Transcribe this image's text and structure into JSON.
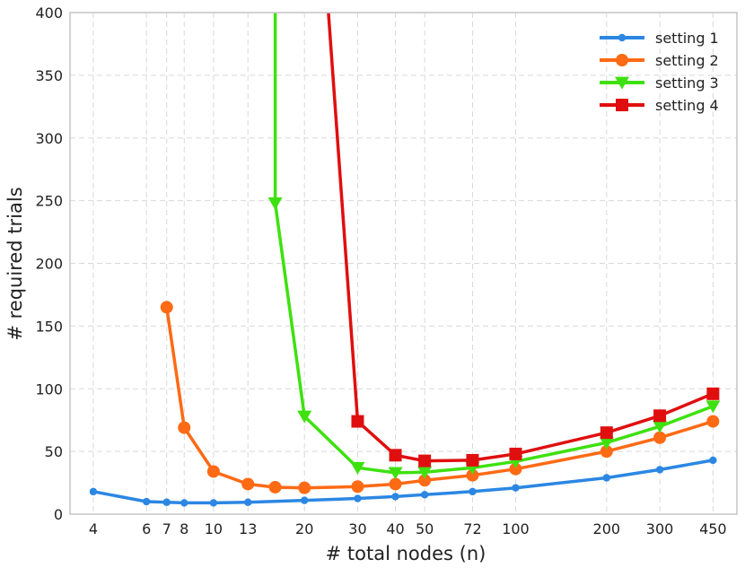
{
  "chart_data": {
    "type": "line",
    "xlabel": "# total nodes (n)",
    "ylabel": "# required trials",
    "x_scale": "log",
    "xlim": [
      3.35,
      540
    ],
    "ylim": [
      0,
      400
    ],
    "x_ticks": [
      4,
      6,
      7,
      8,
      10,
      13,
      20,
      30,
      40,
      50,
      72,
      100,
      200,
      300,
      450
    ],
    "x_tick_labels": [
      "4",
      "6",
      "7",
      "8",
      "10",
      "13",
      "20",
      "30",
      "40",
      "50",
      "72",
      "100",
      "200",
      "300",
      "450"
    ],
    "y_ticks": [
      0,
      50,
      100,
      150,
      200,
      250,
      300,
      350,
      400
    ],
    "y_tick_labels": [
      "0",
      "50",
      "100",
      "150",
      "200",
      "250",
      "300",
      "350",
      "400"
    ],
    "grid": true,
    "legend_position": "top-right",
    "series": [
      {
        "name": "setting 1",
        "color": "#2b87e3",
        "marker": "circle-small",
        "x": [
          4,
          6,
          7,
          8,
          10,
          13,
          20,
          30,
          40,
          50,
          72,
          100,
          200,
          300,
          450
        ],
        "y": [
          18,
          10,
          9.5,
          9,
          9,
          9.5,
          11,
          12.5,
          14,
          15.5,
          18,
          21,
          29,
          35.5,
          43
        ]
      },
      {
        "name": "setting 2",
        "color": "#ff6a14",
        "marker": "circle",
        "x": [
          7,
          8,
          10,
          13,
          16,
          20,
          30,
          40,
          50,
          72,
          100,
          200,
          300,
          450
        ],
        "y": [
          165,
          69,
          34,
          24,
          21.5,
          21,
          22,
          24,
          27,
          31,
          36,
          50,
          61,
          74
        ]
      },
      {
        "name": "setting 3",
        "color": "#3ee10f",
        "marker": "triangle-down",
        "x": [
          16,
          16,
          20,
          30,
          40,
          50,
          72,
          100,
          200,
          300,
          450
        ],
        "y": [
          400,
          248,
          78,
          37,
          33,
          33.5,
          37,
          42,
          57,
          70,
          86
        ]
      },
      {
        "name": "setting 4",
        "color": "#e00f0f",
        "marker": "square",
        "x": [
          24,
          30,
          40,
          50,
          72,
          100,
          200,
          300,
          450
        ],
        "y": [
          400,
          74,
          47,
          42.5,
          43,
          48,
          65,
          78.5,
          96
        ]
      }
    ]
  }
}
